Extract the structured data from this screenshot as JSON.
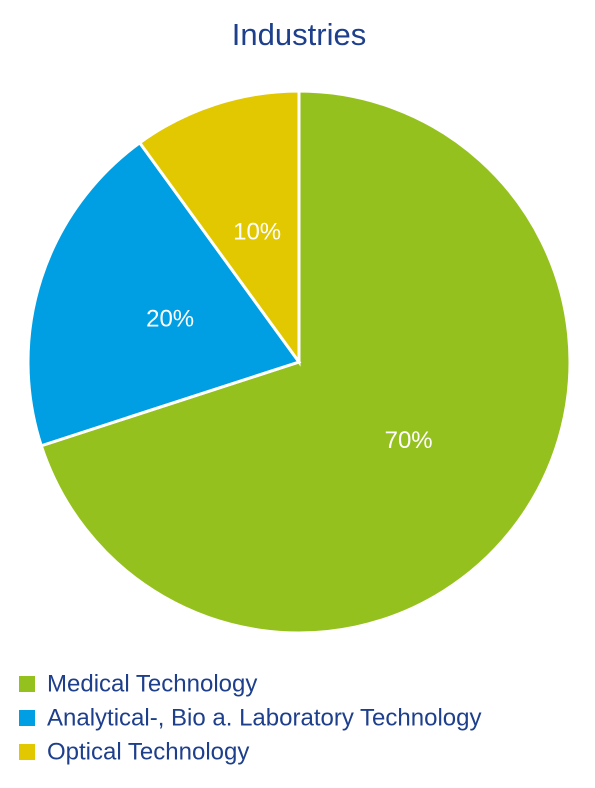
{
  "chart_data": {
    "type": "pie",
    "title": "Industries",
    "categories": [
      "Medical Technology",
      "Analytical-, Bio a. Laboratory Technology",
      "Optical Technology"
    ],
    "values": [
      70,
      20,
      10
    ],
    "value_labels": [
      "70%",
      "20%",
      "10%"
    ],
    "colors": [
      "#95c11f",
      "#009fe3",
      "#e2c800"
    ],
    "legend": "bottom-left"
  }
}
